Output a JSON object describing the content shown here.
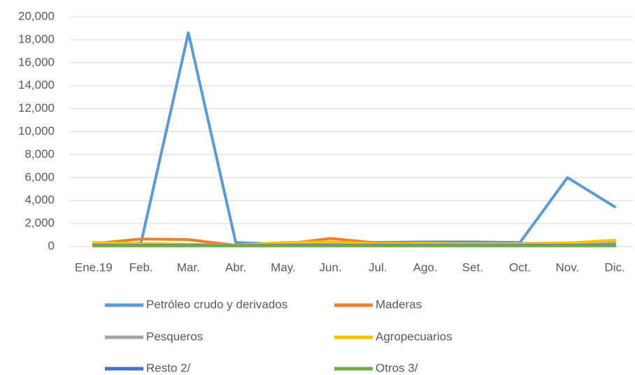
{
  "chart_data": {
    "type": "line",
    "categories": [
      "Ene.19",
      "Feb.",
      "Mar.",
      "Abr.",
      "May.",
      "Jun.",
      "Jul.",
      "Ago.",
      "Set.",
      "Oct.",
      "Nov.",
      "Dic."
    ],
    "series": [
      {
        "name": "Petróleo crudo y derivados",
        "color": "#5b9bd5",
        "values": [
          100,
          300,
          18600,
          350,
          200,
          350,
          350,
          400,
          400,
          350,
          6000,
          3450
        ]
      },
      {
        "name": "Maderas",
        "color": "#ed7d31",
        "values": [
          250,
          650,
          600,
          100,
          200,
          700,
          300,
          300,
          250,
          250,
          300,
          300
        ]
      },
      {
        "name": "Pesqueros",
        "color": "#a5a5a5",
        "values": [
          150,
          200,
          200,
          100,
          150,
          200,
          250,
          250,
          250,
          250,
          300,
          250
        ]
      },
      {
        "name": "Agropecuarios",
        "color": "#ffc000",
        "values": [
          350,
          250,
          200,
          100,
          350,
          400,
          250,
          250,
          200,
          200,
          300,
          550
        ]
      },
      {
        "name": "Resto 2/",
        "color": "#4472c4",
        "values": [
          100,
          100,
          100,
          80,
          100,
          100,
          100,
          100,
          100,
          100,
          100,
          100
        ]
      },
      {
        "name": "Otros 3/",
        "color": "#70ad47",
        "values": [
          50,
          50,
          50,
          40,
          50,
          50,
          50,
          50,
          50,
          50,
          50,
          50
        ]
      }
    ],
    "ylim": [
      0,
      20000
    ],
    "yticks": [
      0,
      {
        "value": 2000,
        "label": "2,000"
      },
      {
        "value": 4000,
        "label": "4,000"
      },
      {
        "value": 6000,
        "label": "6,000"
      },
      {
        "value": 8000,
        "label": "8,000"
      },
      {
        "value": 10000,
        "label": "10,000"
      },
      {
        "value": 12000,
        "label": "12,000"
      },
      {
        "value": 14000,
        "label": "14,000"
      },
      {
        "value": 16000,
        "label": "16,000"
      },
      {
        "value": 18000,
        "label": "18,000"
      },
      {
        "value": 20000,
        "label": "20,000"
      }
    ],
    "grid": true
  }
}
